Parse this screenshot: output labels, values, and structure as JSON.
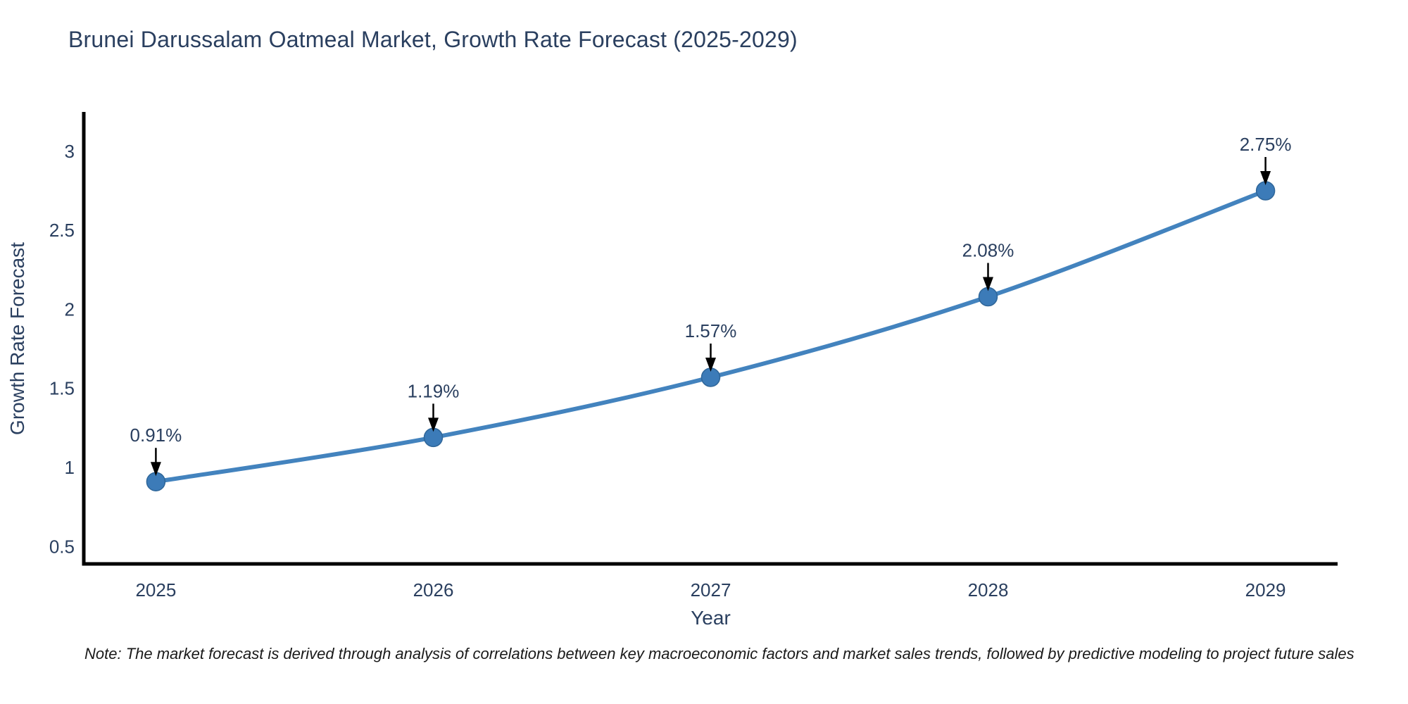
{
  "page": {
    "title": "Brunei Darussalam Oatmeal Market, Growth Rate Forecast (2025-2029)",
    "note": "Note: The market forecast is derived through analysis of correlations between key macroeconomic factors and market sales trends, followed by predictive modeling to project future sales"
  },
  "colors": {
    "title_text": "#2a3f5f",
    "axis_text": "#2a3f5f",
    "note_text": "#1a1a1a",
    "line": "#4383be",
    "marker_fill": "#3c7bb8",
    "marker_stroke": "#2f6699",
    "axis_line": "#000000",
    "arrow": "#000000",
    "background": "#ffffff"
  },
  "chart_data": {
    "type": "line",
    "title": "Brunei Darussalam Oatmeal Market, Growth Rate Forecast (2025-2029)",
    "xlabel": "Year",
    "ylabel": "Growth Rate Forecast",
    "x": [
      2025,
      2026,
      2027,
      2028,
      2029
    ],
    "series": [
      {
        "name": "Growth Rate Forecast",
        "values": [
          0.91,
          1.19,
          1.57,
          2.08,
          2.75
        ]
      }
    ],
    "point_labels": [
      "0.91%",
      "1.19%",
      "1.57%",
      "2.08%",
      "2.75%"
    ],
    "xtick_labels": [
      "2025",
      "2026",
      "2027",
      "2028",
      "2029"
    ],
    "ytick_values": [
      0.5,
      1,
      1.5,
      2,
      2.5,
      3
    ],
    "ytick_labels": [
      "0.5",
      "1",
      "1.5",
      "2",
      "2.5",
      "3"
    ],
    "xlim": [
      2024.74,
      2029.26
    ],
    "ylim": [
      0.39,
      3.24
    ],
    "grid": false,
    "legend": "none",
    "line_shape": "spline",
    "annotations_arrows": true
  }
}
